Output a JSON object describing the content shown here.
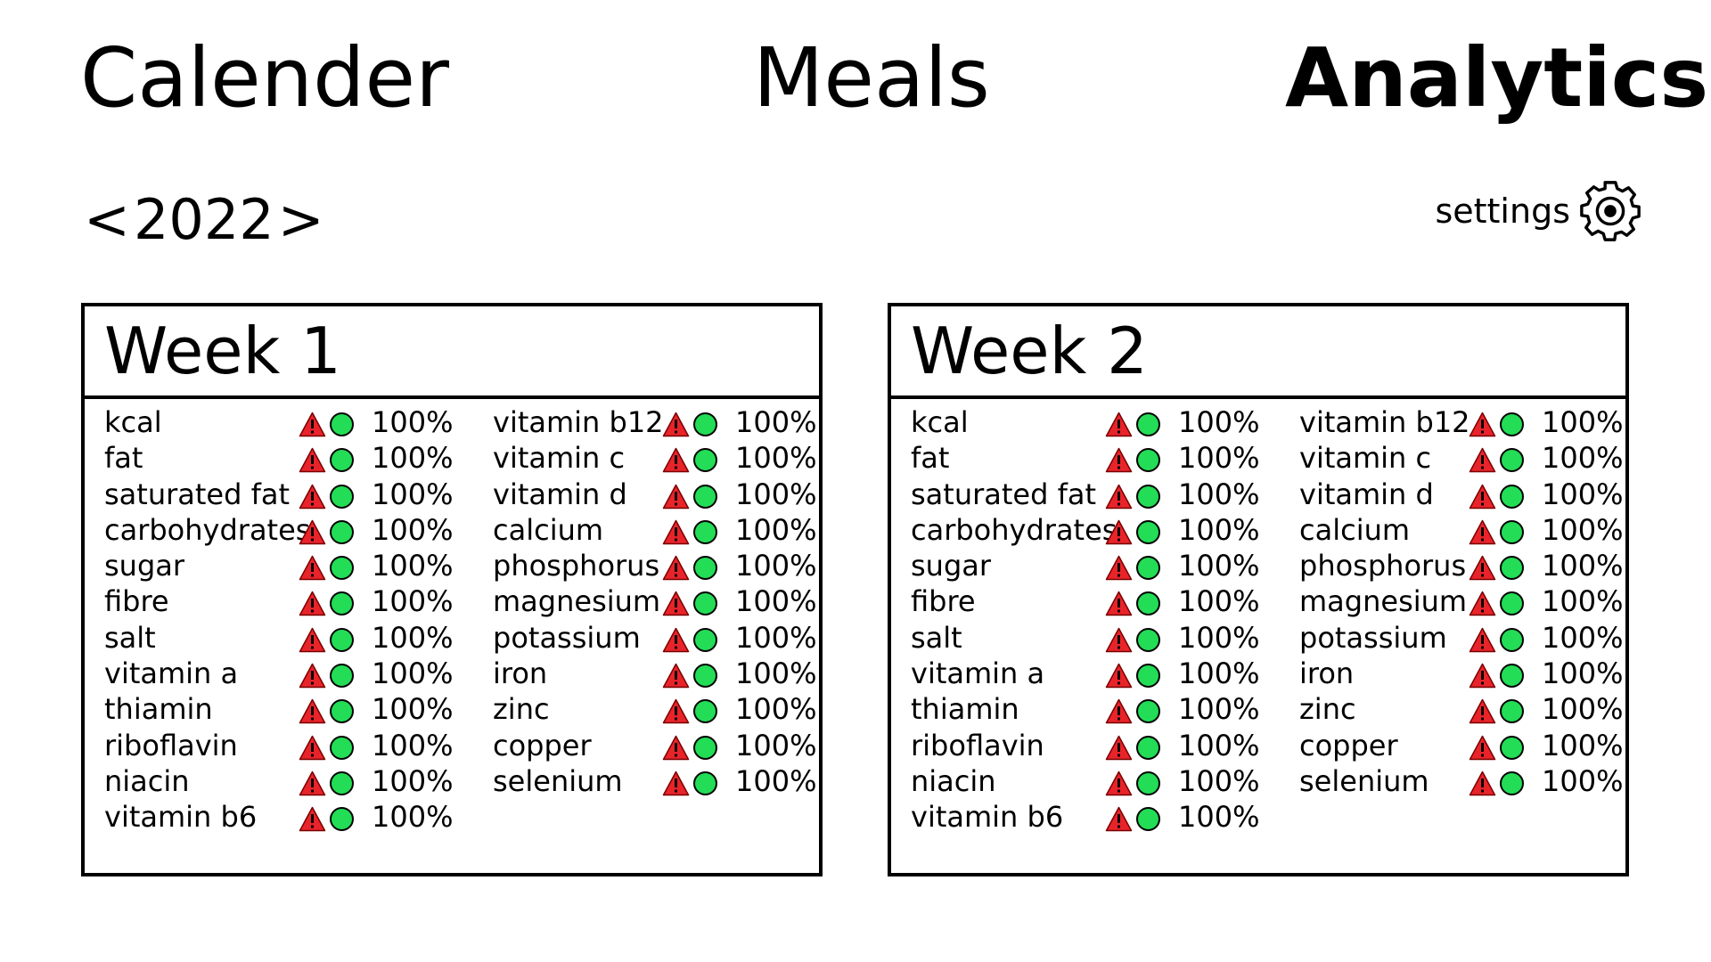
{
  "nav": {
    "calender": "Calender",
    "meals": "Meals",
    "analytics": "Analytics",
    "active": "analytics"
  },
  "year_selector": {
    "prev": "<",
    "year": "2022",
    "next": ">"
  },
  "settings": {
    "label": "settings",
    "icon": "gear-icon"
  },
  "colors": {
    "warning": "#e8242a",
    "ok": "#22dd55",
    "border": "#000000"
  },
  "weeks": [
    {
      "title": "Week 1",
      "col_a": [
        {
          "label": "kcal",
          "value": "100%"
        },
        {
          "label": "fat",
          "value": "100%"
        },
        {
          "label": "saturated fat",
          "value": "100%"
        },
        {
          "label": "carbohydrates",
          "value": "100%"
        },
        {
          "label": "sugar",
          "value": "100%"
        },
        {
          "label": "fibre",
          "value": "100%"
        },
        {
          "label": "salt",
          "value": "100%"
        },
        {
          "label": "vitamin a",
          "value": "100%"
        },
        {
          "label": "thiamin",
          "value": "100%"
        },
        {
          "label": "riboflavin",
          "value": "100%"
        },
        {
          "label": "niacin",
          "value": "100%"
        },
        {
          "label": "vitamin b6",
          "value": "100%"
        }
      ],
      "col_b": [
        {
          "label": "vitamin b12",
          "value": "100%"
        },
        {
          "label": "vitamin c",
          "value": "100%"
        },
        {
          "label": "vitamin d",
          "value": "100%"
        },
        {
          "label": "calcium",
          "value": "100%"
        },
        {
          "label": "phosphorus",
          "value": "100%"
        },
        {
          "label": "magnesium",
          "value": "100%"
        },
        {
          "label": "potassium",
          "value": "100%"
        },
        {
          "label": "iron",
          "value": "100%"
        },
        {
          "label": "zinc",
          "value": "100%"
        },
        {
          "label": "copper",
          "value": "100%"
        },
        {
          "label": "selenium",
          "value": "100%"
        }
      ]
    },
    {
      "title": "Week 2",
      "col_a": [
        {
          "label": "kcal",
          "value": "100%"
        },
        {
          "label": "fat",
          "value": "100%"
        },
        {
          "label": "saturated fat",
          "value": "100%"
        },
        {
          "label": "carbohydrates",
          "value": "100%"
        },
        {
          "label": "sugar",
          "value": "100%"
        },
        {
          "label": "fibre",
          "value": "100%"
        },
        {
          "label": "salt",
          "value": "100%"
        },
        {
          "label": "vitamin a",
          "value": "100%"
        },
        {
          "label": "thiamin",
          "value": "100%"
        },
        {
          "label": "riboflavin",
          "value": "100%"
        },
        {
          "label": "niacin",
          "value": "100%"
        },
        {
          "label": "vitamin b6",
          "value": "100%"
        }
      ],
      "col_b": [
        {
          "label": "vitamin b12",
          "value": "100%"
        },
        {
          "label": "vitamin c",
          "value": "100%"
        },
        {
          "label": "vitamin d",
          "value": "100%"
        },
        {
          "label": "calcium",
          "value": "100%"
        },
        {
          "label": "phosphorus",
          "value": "100%"
        },
        {
          "label": "magnesium",
          "value": "100%"
        },
        {
          "label": "potassium",
          "value": "100%"
        },
        {
          "label": "iron",
          "value": "100%"
        },
        {
          "label": "zinc",
          "value": "100%"
        },
        {
          "label": "copper",
          "value": "100%"
        },
        {
          "label": "selenium",
          "value": "100%"
        }
      ]
    }
  ]
}
